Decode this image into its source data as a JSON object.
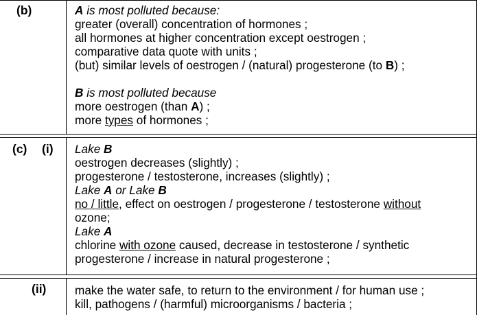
{
  "row_b": {
    "label": "(b)",
    "l1_a": "A",
    "l1_rest": " is most polluted because:",
    "l2": "greater (overall) concentration of hormones ;",
    "l3": "all hormones at higher concentration except oestrogen ;",
    "l4": "comparative data quote with units ;",
    "l5_pre": "(but) similar levels of oestrogen / (natural) progesterone (to ",
    "l5_b": "B",
    "l5_post": ") ;",
    "l6_b": "B",
    "l6_rest": " is most polluted because",
    "l7_pre": "more oestrogen (than ",
    "l7_a": "A",
    "l7_post": ") ;",
    "l8_pre": "more ",
    "l8_u": "types",
    "l8_post": " of hormones ;"
  },
  "row_c_i": {
    "label_c": "(c)",
    "label_i": "(i)",
    "l1_lake": "Lake ",
    "l1_b": "B",
    "l2": "oestrogen decreases (slightly) ;",
    "l3": "progesterone / testosterone, increases (slightly) ;",
    "l4_lake": "Lake ",
    "l4_a": "A",
    "l4_or": " or Lake ",
    "l4_b": "B",
    "l5_u": "no / little",
    "l5_mid": ", effect on oestrogen / progesterone / testosterone ",
    "l5_u2": "without",
    "l6": "ozone;",
    "l7_lake": "Lake ",
    "l7_a": "A",
    "l8_pre": "chlorine ",
    "l8_u": "with ozone",
    "l8_post": " caused, decrease in testosterone / synthetic",
    "l9": "progesterone / increase in natural progesterone ;"
  },
  "row_c_ii": {
    "label": "(ii)",
    "l1": "make the water safe, to return to the environment / for human use ;",
    "l2": "kill, pathogens / (harmful) microorganisms / bacteria ;"
  }
}
